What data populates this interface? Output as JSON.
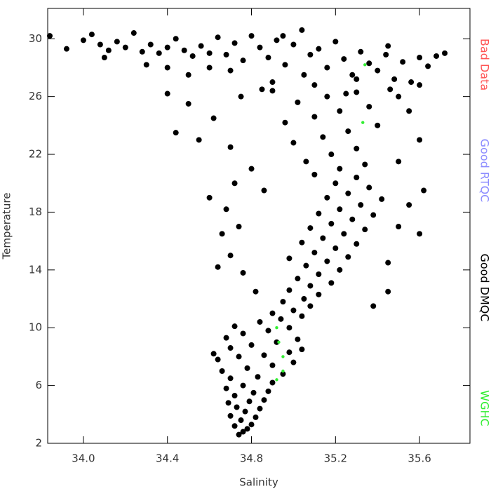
{
  "chart_data": {
    "type": "scatter",
    "xlabel": "Salinity",
    "ylabel": "Temperature",
    "xlim": [
      33.83,
      35.84
    ],
    "ylim": [
      2,
      32.1
    ],
    "xticks": [
      {
        "value": 34,
        "label": "34.0"
      },
      34.4,
      34.8,
      35.2,
      35.6
    ],
    "yticks": [
      2,
      6,
      10,
      14,
      18,
      22,
      26,
      30
    ],
    "series": [
      {
        "name": "Bad Data",
        "color": "#ff5555",
        "x": [],
        "y": []
      },
      {
        "name": "Good RTQC",
        "color": "#8c8cff",
        "x": [],
        "y": []
      },
      {
        "name": "Good DMQC",
        "color": "#000000",
        "x": [
          34.74,
          34.76,
          34.78,
          34.72,
          34.8,
          34.75,
          34.7,
          34.82,
          34.77,
          34.73,
          34.84,
          34.69,
          34.79,
          34.86,
          34.72,
          34.81,
          34.88,
          34.68,
          34.76,
          34.9,
          34.7,
          34.83,
          34.95,
          34.66,
          34.78,
          34.9,
          35.0,
          34.64,
          34.74,
          34.86,
          34.98,
          35.04,
          34.62,
          34.7,
          34.8,
          34.92,
          35.02,
          34.68,
          34.76,
          34.88,
          34.98,
          34.72,
          34.84,
          34.94,
          35.04,
          34.9,
          35.0,
          35.08,
          34.95,
          35.05,
          35.12,
          34.98,
          35.08,
          35.18,
          35.02,
          35.12,
          35.22,
          35.06,
          35.16,
          35.26,
          34.98,
          35.1,
          35.2,
          35.3,
          35.04,
          35.14,
          35.24,
          35.34,
          35.08,
          35.18,
          35.28,
          35.38,
          35.12,
          35.22,
          35.32,
          35.42,
          35.16,
          35.26,
          35.36,
          35.2,
          35.3,
          35.1,
          35.22,
          35.34,
          35.06,
          35.18,
          35.3,
          35.0,
          35.14,
          35.26,
          35.4,
          34.96,
          35.1,
          35.22,
          35.36,
          35.02,
          35.16,
          35.3,
          35.46,
          34.9,
          34.66,
          34.7,
          34.74,
          34.68,
          34.76,
          34.82,
          34.64,
          34.86,
          34.6,
          34.8,
          34.7,
          34.62,
          34.5,
          34.4,
          34.55,
          34.72,
          35.5,
          35.55,
          35.6,
          35.45,
          35.5,
          35.6,
          35.55,
          35.45,
          35.38,
          35.62,
          34.44,
          33.84,
          33.92,
          34.0,
          34.04,
          34.08,
          34.12,
          34.16,
          34.2,
          34.24,
          34.28,
          34.32,
          34.36,
          34.4,
          34.44,
          34.48,
          34.52,
          34.56,
          34.6,
          34.64,
          34.68,
          34.72,
          34.76,
          34.8,
          34.84,
          34.88,
          34.92,
          34.96,
          35.0,
          35.04,
          35.08,
          35.12,
          35.16,
          35.2,
          35.24,
          35.28,
          35.32,
          35.36,
          35.4,
          35.44,
          35.48,
          35.52,
          35.56,
          35.6,
          35.64,
          35.68,
          35.72,
          34.1,
          34.3,
          34.5,
          34.7,
          34.9,
          35.1,
          35.3,
          35.5,
          34.6,
          34.85,
          35.05,
          35.25,
          35.45,
          35.6,
          34.4,
          34.95,
          34.75
        ],
        "y": [
          2.6,
          2.8,
          3.0,
          3.2,
          3.3,
          3.6,
          3.9,
          3.8,
          4.2,
          4.5,
          4.4,
          4.8,
          4.9,
          5.0,
          5.3,
          5.5,
          5.6,
          5.8,
          6.0,
          6.2,
          6.5,
          6.6,
          6.8,
          7.0,
          7.2,
          7.4,
          7.6,
          7.8,
          8.0,
          8.1,
          8.3,
          8.5,
          8.2,
          8.6,
          8.8,
          9.0,
          9.2,
          9.3,
          9.6,
          9.8,
          10.0,
          10.1,
          10.4,
          10.6,
          10.8,
          11.0,
          11.2,
          11.5,
          11.8,
          12.0,
          12.3,
          12.6,
          12.9,
          13.1,
          13.4,
          13.7,
          14.0,
          14.3,
          14.6,
          14.9,
          14.8,
          15.2,
          15.5,
          15.8,
          15.9,
          16.2,
          16.5,
          16.8,
          16.9,
          17.2,
          17.5,
          17.8,
          17.9,
          18.2,
          18.5,
          18.9,
          19.0,
          19.3,
          19.7,
          20.0,
          20.4,
          20.6,
          21.0,
          21.3,
          21.5,
          22.0,
          22.4,
          22.8,
          23.2,
          23.6,
          24.0,
          24.2,
          24.6,
          25.0,
          25.3,
          25.6,
          26.0,
          26.3,
          26.5,
          26.4,
          16.5,
          15.0,
          17.0,
          18.2,
          13.8,
          12.5,
          14.2,
          19.5,
          19.0,
          21.0,
          22.5,
          24.5,
          25.5,
          26.2,
          23.0,
          20.0,
          17.0,
          18.5,
          16.5,
          14.5,
          21.5,
          23.0,
          25.0,
          12.5,
          11.5,
          19.5,
          23.5,
          30.2,
          29.3,
          29.9,
          30.3,
          29.6,
          29.2,
          29.8,
          29.4,
          30.4,
          29.1,
          29.6,
          29.0,
          29.4,
          30.0,
          29.2,
          28.8,
          29.5,
          29.0,
          30.1,
          28.9,
          29.7,
          28.5,
          30.2,
          29.4,
          28.7,
          29.9,
          28.2,
          29.6,
          30.6,
          28.9,
          29.3,
          28.0,
          29.8,
          28.6,
          27.5,
          29.1,
          28.3,
          27.8,
          28.9,
          27.2,
          28.4,
          27.0,
          28.7,
          28.1,
          28.8,
          29.0,
          28.7,
          28.2,
          27.5,
          27.8,
          27.0,
          26.8,
          27.2,
          26.0,
          28.0,
          26.5,
          27.5,
          26.2,
          29.5,
          26.8,
          28.0,
          30.2,
          26.0
        ]
      },
      {
        "name": "WGHC",
        "color": "#33ee33",
        "x": [
          34.92,
          34.93,
          34.95,
          34.95,
          34.92,
          35.34,
          35.33
        ],
        "y": [
          10.0,
          9.0,
          8.0,
          7.0,
          6.4,
          28.2,
          24.2
        ]
      }
    ]
  }
}
